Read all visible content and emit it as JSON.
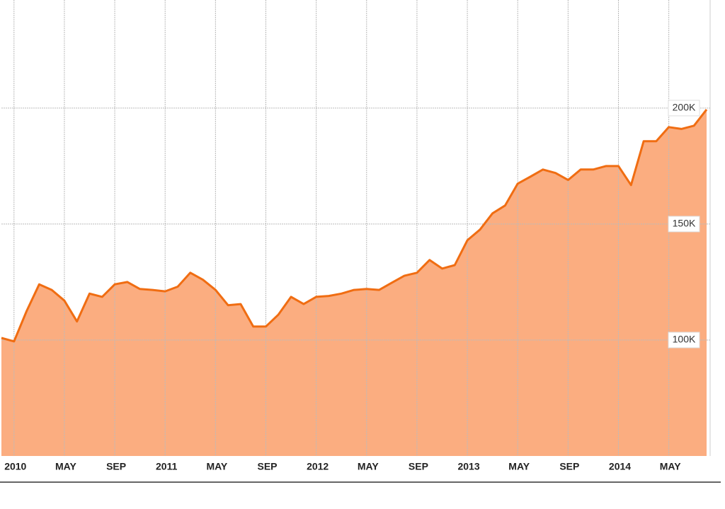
{
  "chart_data": {
    "type": "area",
    "x": [
      "2009-12",
      "2010-01",
      "2010-02",
      "2010-03",
      "2010-04",
      "2010-05",
      "2010-06",
      "2010-07",
      "2010-08",
      "2010-09",
      "2010-10",
      "2010-11",
      "2010-12",
      "2011-01",
      "2011-02",
      "2011-03",
      "2011-04",
      "2011-05",
      "2011-06",
      "2011-07",
      "2011-08",
      "2011-09",
      "2011-10",
      "2011-11",
      "2011-12",
      "2012-01",
      "2012-02",
      "2012-03",
      "2012-04",
      "2012-05",
      "2012-06",
      "2012-07",
      "2012-08",
      "2012-09",
      "2012-10",
      "2012-11",
      "2012-12",
      "2013-01",
      "2013-02",
      "2013-03",
      "2013-04",
      "2013-05",
      "2013-06",
      "2013-07",
      "2013-08",
      "2013-09",
      "2013-10",
      "2013-11",
      "2013-12",
      "2014-01",
      "2014-02",
      "2014-03",
      "2014-04",
      "2014-05",
      "2014-06",
      "2014-07",
      "2014-08"
    ],
    "series": [
      {
        "color": "#f06d12",
        "fill": "#fbad80",
        "values": [
          100900,
          99400,
          112500,
          124000,
          121600,
          117000,
          108000,
          120000,
          118600,
          124000,
          125000,
          122000,
          121600,
          121000,
          123000,
          129000,
          126000,
          121600,
          115000,
          115500,
          105800,
          105800,
          111000,
          118600,
          115500,
          118600,
          119000,
          120000,
          121600,
          122000,
          121600,
          124700,
          127700,
          129000,
          134500,
          130800,
          132300,
          143000,
          147600,
          154600,
          158000,
          167400,
          170400,
          173500,
          172000,
          169000,
          173500,
          173500,
          175000,
          175000,
          166800,
          185700,
          185700,
          191800,
          191000,
          192400,
          199400
        ]
      }
    ],
    "xlim": [
      "2009-12",
      "2014-08"
    ],
    "xticks": [
      {
        "value": "2010-01",
        "label": "2010"
      },
      {
        "value": "2010-05",
        "label": "MAY"
      },
      {
        "value": "2010-09",
        "label": "SEP"
      },
      {
        "value": "2011-01",
        "label": "2011"
      },
      {
        "value": "2011-05",
        "label": "MAY"
      },
      {
        "value": "2011-09",
        "label": "SEP"
      },
      {
        "value": "2012-01",
        "label": "2012"
      },
      {
        "value": "2012-05",
        "label": "MAY"
      },
      {
        "value": "2012-09",
        "label": "SEP"
      },
      {
        "value": "2013-01",
        "label": "2013"
      },
      {
        "value": "2013-05",
        "label": "MAY"
      },
      {
        "value": "2013-09",
        "label": "SEP"
      },
      {
        "value": "2014-01",
        "label": "2014"
      },
      {
        "value": "2014-05",
        "label": "MAY"
      }
    ],
    "ylim": [
      50000,
      246600
    ],
    "yticks": [
      {
        "value": 100000,
        "label": "100K"
      },
      {
        "value": 150000,
        "label": "150K"
      },
      {
        "value": 200000,
        "label": "200K"
      }
    ],
    "grid": true
  }
}
